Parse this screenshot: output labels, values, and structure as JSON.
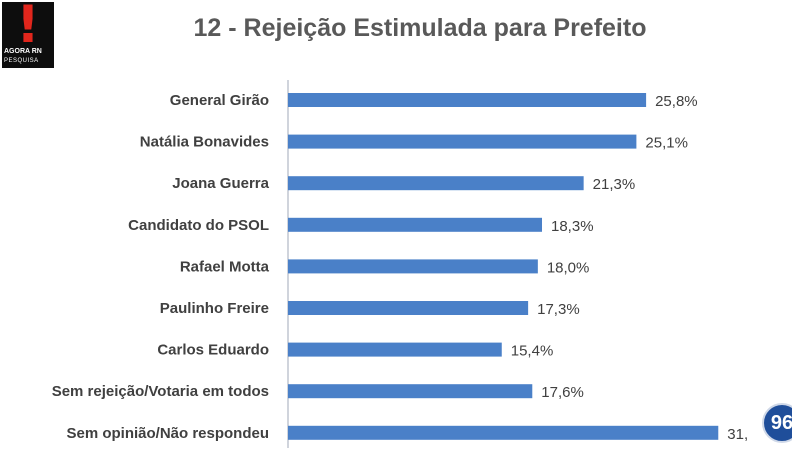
{
  "logo": {
    "brand_text": "AGORA RN",
    "sub_text": "PESQUISA",
    "icon": "exclamation-icon"
  },
  "corner_badge": {
    "text": "96"
  },
  "chart_data": {
    "type": "bar",
    "orientation": "horizontal",
    "title": "12 - Rejeição Estimulada para Prefeito",
    "categories": [
      "General Girão",
      "Natália Bonavides",
      "Joana Guerra",
      "Candidato do PSOL",
      "Rafael Motta",
      "Paulinho Freire",
      "Carlos Eduardo",
      "Sem rejeição/Votaria em todos",
      "Sem opinião/Não respondeu"
    ],
    "values": [
      25.8,
      25.1,
      21.3,
      18.3,
      18.0,
      17.3,
      15.4,
      17.6,
      31.0
    ],
    "value_labels": [
      "25,8%",
      "25,1%",
      "21,3%",
      "18,3%",
      "18,0%",
      "17,3%",
      "15,4%",
      "17,6%",
      "31,"
    ],
    "xlim": [
      0,
      31.7
    ],
    "grid": false,
    "legend": "none",
    "colors": {
      "bar": "#4a80c8",
      "axis": "#b0b8c4",
      "text": "#404040",
      "title": "#595959"
    }
  }
}
